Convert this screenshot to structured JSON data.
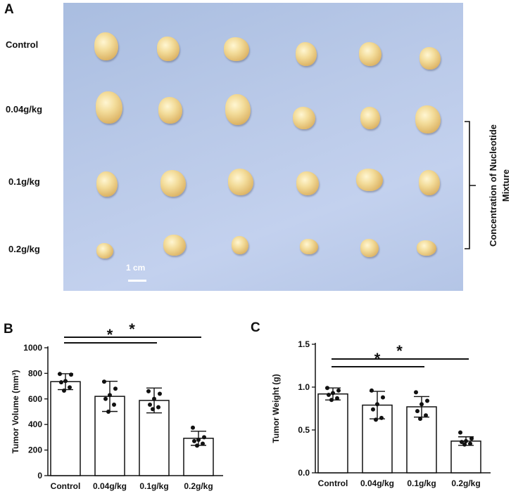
{
  "panel_a": {
    "letter": "A",
    "row_labels": [
      "Control",
      "0.04g/kg",
      "0.1g/kg",
      "0.2g/kg"
    ],
    "scale_bar_label": "1 cm",
    "bracket_label_line1": "Concentration of Nucleotide",
    "bracket_label_line2": "Mixture"
  },
  "panel_b": {
    "letter": "B"
  },
  "panel_c": {
    "letter": "C"
  },
  "chart_data": [
    {
      "type": "bar",
      "categories": [
        "Control",
        "0.04g/kg",
        "0.1g/kg",
        "0.2g/kg"
      ],
      "values": [
        735,
        620,
        588,
        292
      ],
      "errors": [
        62,
        118,
        97,
        55
      ],
      "points": [
        [
          795,
          790,
          740,
          730,
          690,
          665
        ],
        [
          735,
          680,
          630,
          600,
          555,
          500
        ],
        [
          660,
          640,
          600,
          555,
          535,
          520
        ],
        [
          375,
          300,
          280,
          270,
          250,
          235
        ]
      ],
      "ylabel": "Tumor Volume (mm³)",
      "ylim": [
        0,
        1000
      ],
      "yticks": [
        "0",
        "200",
        "400",
        "600",
        "800",
        "1000"
      ],
      "significance": [
        {
          "from": "Control",
          "to": "0.1g/kg",
          "label": "*"
        },
        {
          "from": "Control",
          "to": "0.2g/kg",
          "label": "*"
        }
      ]
    },
    {
      "type": "bar",
      "categories": [
        "Control",
        "0.04g/kg",
        "0.1g/kg",
        "0.2g/kg"
      ],
      "values": [
        0.92,
        0.79,
        0.77,
        0.37
      ],
      "errors": [
        0.07,
        0.16,
        0.12,
        0.05
      ],
      "points": [
        [
          0.99,
          0.96,
          0.93,
          0.91,
          0.87,
          0.85
        ],
        [
          0.96,
          0.88,
          0.8,
          0.74,
          0.64,
          0.62
        ],
        [
          0.94,
          0.84,
          0.8,
          0.72,
          0.67,
          0.63
        ],
        [
          0.47,
          0.4,
          0.37,
          0.36,
          0.34,
          0.33
        ]
      ],
      "ylabel": "Tumor Weight (g)",
      "ylim": [
        0,
        1.5
      ],
      "yticks": [
        "0.0",
        "0.5",
        "1.0",
        "1.5"
      ],
      "significance": [
        {
          "from": "Control",
          "to": "0.1g/kg",
          "label": "*"
        },
        {
          "from": "Control",
          "to": "0.2g/kg",
          "label": "*"
        }
      ]
    }
  ]
}
